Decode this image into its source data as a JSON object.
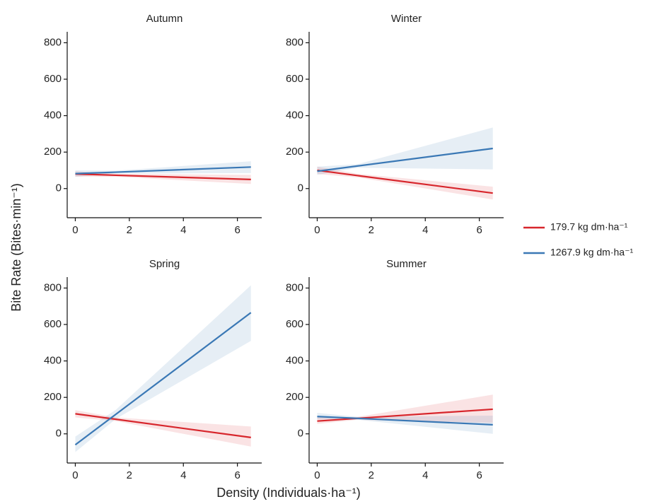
{
  "xlabel": "Density (Individuals·ha⁻¹)",
  "ylabel": "Bite Rate (Bites·min⁻¹)",
  "chart_data": [
    {
      "type": "line",
      "title": "Autumn",
      "x": [
        0,
        1.5,
        6.5
      ],
      "xlim": [
        -0.3,
        6.9
      ],
      "xticks": [
        0,
        2,
        4,
        6
      ],
      "ylim": [
        -160,
        860
      ],
      "yticks": [
        0,
        200,
        400,
        600,
        800
      ],
      "series": [
        {
          "name": "179.7 kg dm·ha⁻¹",
          "color": "#d7262c",
          "values": [
            80,
            73,
            50
          ],
          "lower": [
            65,
            65,
            25
          ],
          "upper": [
            95,
            81,
            75
          ]
        },
        {
          "name": "1267.9 kg dm·ha⁻¹",
          "color": "#3a78b5",
          "values": [
            82,
            90,
            118
          ],
          "lower": [
            65,
            82,
            85
          ],
          "upper": [
            100,
            98,
            150
          ]
        }
      ]
    },
    {
      "type": "line",
      "title": "Winter",
      "x": [
        0,
        1.5,
        6.5
      ],
      "xlim": [
        -0.3,
        6.9
      ],
      "xticks": [
        0,
        2,
        4,
        6
      ],
      "ylim": [
        -160,
        860
      ],
      "yticks": [
        0,
        200,
        400,
        600,
        800
      ],
      "series": [
        {
          "name": "179.7 kg dm·ha⁻¹",
          "color": "#d7262c",
          "values": [
            100,
            71,
            -25
          ],
          "lower": [
            80,
            61,
            -60
          ],
          "upper": [
            120,
            81,
            10
          ]
        },
        {
          "name": "1267.9 kg dm·ha⁻¹",
          "color": "#3a78b5",
          "values": [
            95,
            124,
            220
          ],
          "lower": [
            75,
            114,
            105
          ],
          "upper": [
            120,
            134,
            335
          ]
        }
      ]
    },
    {
      "type": "line",
      "title": "Spring",
      "x": [
        0,
        1.5,
        6.5
      ],
      "xlim": [
        -0.3,
        6.9
      ],
      "xticks": [
        0,
        2,
        4,
        6
      ],
      "ylim": [
        -160,
        860
      ],
      "yticks": [
        0,
        200,
        400,
        600,
        800
      ],
      "series": [
        {
          "name": "179.7 kg dm·ha⁻¹",
          "color": "#d7262c",
          "values": [
            110,
            80,
            -20
          ],
          "lower": [
            90,
            70,
            -70
          ],
          "upper": [
            130,
            90,
            40
          ]
        },
        {
          "name": "1267.9 kg dm·ha⁻¹",
          "color": "#3a78b5",
          "values": [
            -60,
            107,
            665
          ],
          "lower": [
            -100,
            82,
            510
          ],
          "upper": [
            -15,
            132,
            815
          ]
        }
      ]
    },
    {
      "type": "line",
      "title": "Summer",
      "x": [
        0,
        1.5,
        6.5
      ],
      "xlim": [
        -0.3,
        6.9
      ],
      "xticks": [
        0,
        2,
        4,
        6
      ],
      "ylim": [
        -160,
        860
      ],
      "yticks": [
        0,
        200,
        400,
        600,
        800
      ],
      "series": [
        {
          "name": "179.7 kg dm·ha⁻¹",
          "color": "#d7262c",
          "values": [
            70,
            85,
            135
          ],
          "lower": [
            55,
            77,
            60
          ],
          "upper": [
            90,
            93,
            215
          ]
        },
        {
          "name": "1267.9 kg dm·ha⁻¹",
          "color": "#3a78b5",
          "values": [
            95,
            85,
            50
          ],
          "lower": [
            80,
            77,
            0
          ],
          "upper": [
            115,
            93,
            100
          ]
        }
      ]
    }
  ]
}
